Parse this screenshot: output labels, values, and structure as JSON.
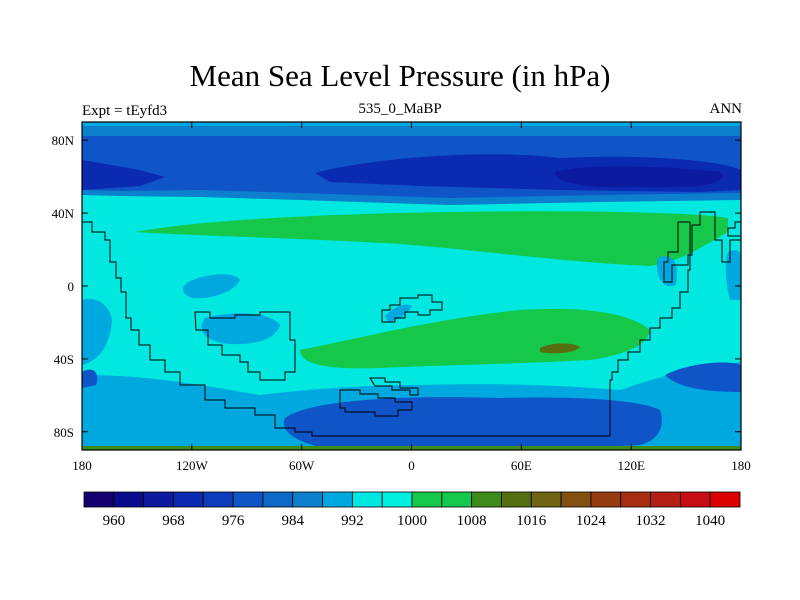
{
  "title": "Mean Sea Level Pressure (in hPa)",
  "subtitle_left": "Expt = tEyfd3",
  "subtitle_center": "535_0_MaBP",
  "subtitle_right": "ANN",
  "chart_data": {
    "type": "heatmap",
    "title": "Mean Sea Level Pressure (in hPa)",
    "projection": "cylindrical equidistant",
    "xlim": [
      -180,
      180
    ],
    "ylim": [
      -90,
      90
    ],
    "x_ticks": [
      {
        "value": -180,
        "label": "180"
      },
      {
        "value": -120,
        "label": "120W"
      },
      {
        "value": -60,
        "label": "60W"
      },
      {
        "value": 0,
        "label": "0"
      },
      {
        "value": 60,
        "label": "60E"
      },
      {
        "value": 120,
        "label": "120E"
      },
      {
        "value": 180,
        "label": "180"
      }
    ],
    "y_ticks": [
      {
        "value": 80,
        "label": "80N"
      },
      {
        "value": 40,
        "label": "40N"
      },
      {
        "value": 0,
        "label": "0"
      },
      {
        "value": -40,
        "label": "40S"
      },
      {
        "value": -80,
        "label": "80S"
      }
    ],
    "colorbar": {
      "levels": [
        956,
        960,
        964,
        968,
        972,
        976,
        980,
        984,
        988,
        992,
        996,
        1000,
        1004,
        1008,
        1012,
        1016,
        1020,
        1024,
        1028,
        1032,
        1036,
        1040
      ],
      "labels": [
        "960",
        "968",
        "976",
        "984",
        "992",
        "1000",
        "1008",
        "1016",
        "1024",
        "1032",
        "1040"
      ],
      "colors": [
        "#14006e",
        "#0a0a8c",
        "#0c1aa0",
        "#0a2aaf",
        "#0d3cbb",
        "#0f55c8",
        "#0b68c8",
        "#0c80cc",
        "#00a8e0",
        "#00e8e0",
        "#00f0e0",
        "#15c84a",
        "#13c84c",
        "#3c8c1c",
        "#556e10",
        "#6e6414",
        "#824f10",
        "#963c10",
        "#a82d10",
        "#b41e14",
        "#c80c14",
        "#dc0000"
      ]
    },
    "regions": [
      {
        "name": "background (994-1000 hPa)",
        "color": "#00e8e0"
      },
      {
        "name": "northern high-latitude low belt",
        "color": "#0f55c8"
      },
      {
        "name": "deep low 60E-150E near 60N",
        "color": "#0a2aaf"
      },
      {
        "name": "deep low 180-150W near 60N",
        "color": "#0a2aaf"
      },
      {
        "name": "subtropical high ~30N",
        "color": "#15c84a"
      },
      {
        "name": "southern subtropical high ~35S",
        "color": "#15c84a"
      },
      {
        "name": "high core ~35S 80E",
        "color": "#3c8c1c"
      },
      {
        "name": "southern low belt ~75S",
        "color": "#0f55c8"
      }
    ]
  }
}
